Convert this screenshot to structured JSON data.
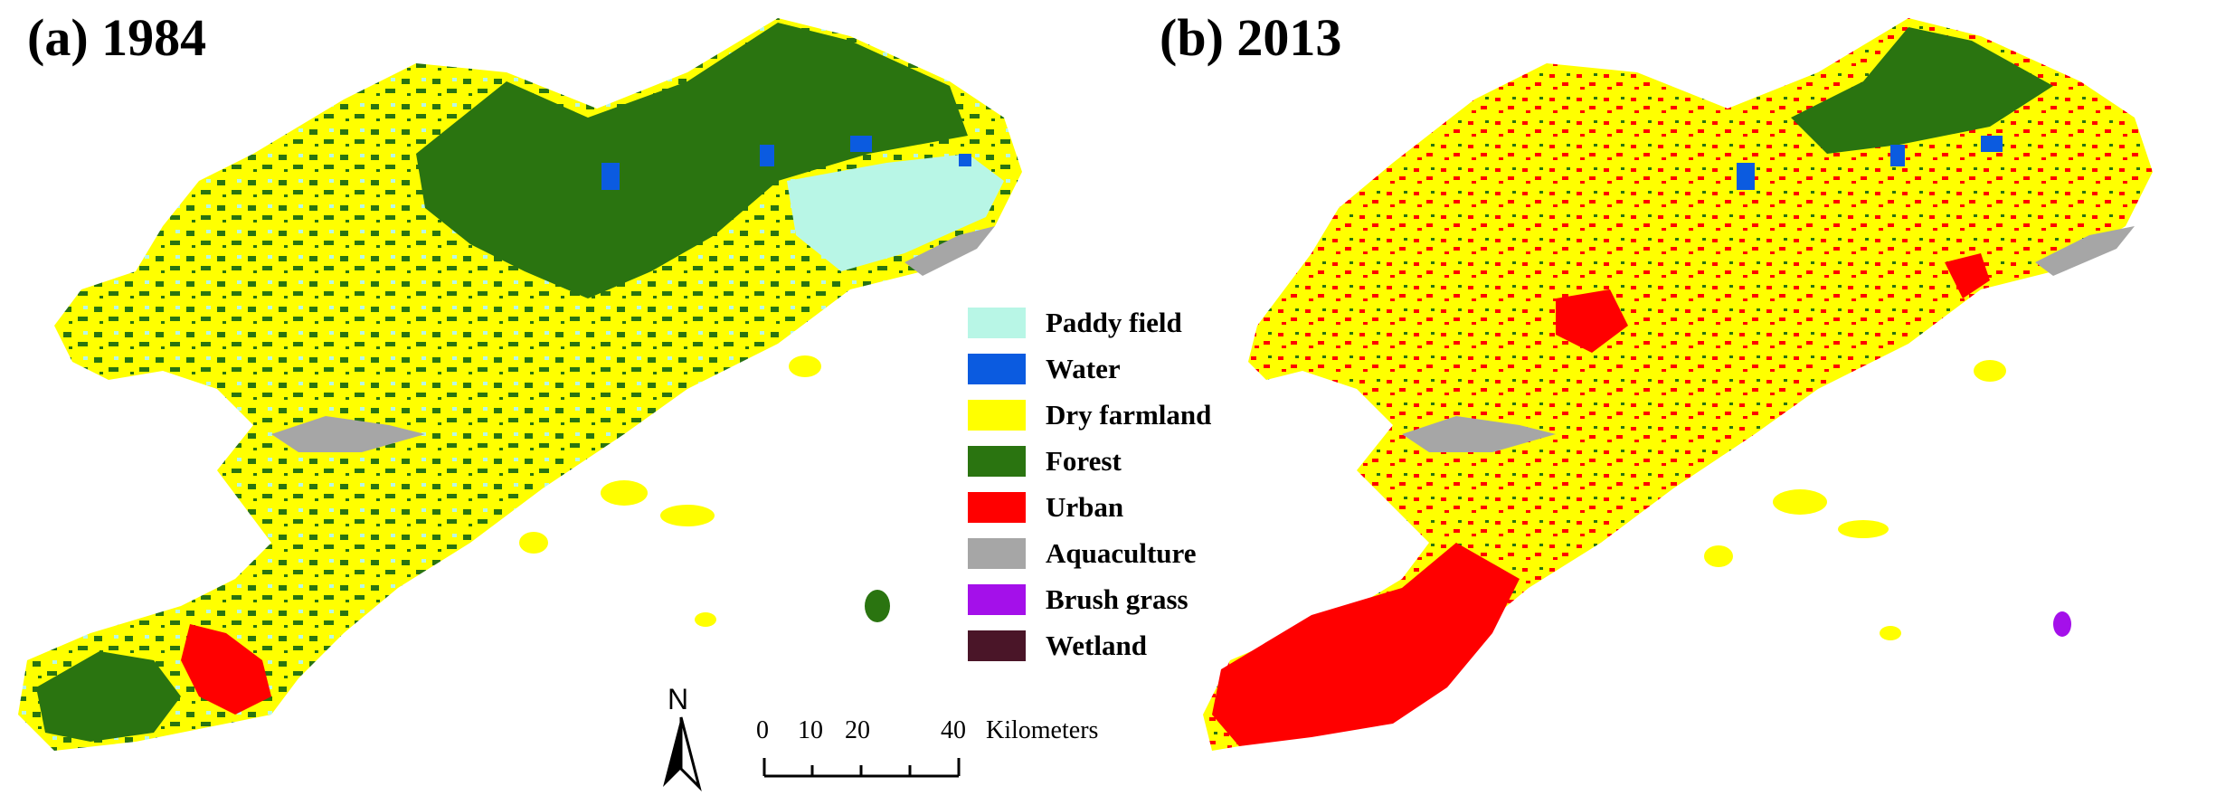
{
  "panels": [
    {
      "title": "(a) 1984"
    },
    {
      "title": "(b) 2013"
    }
  ],
  "legend": [
    {
      "label": "Paddy field",
      "color": "#b8f6e6"
    },
    {
      "label": "Water",
      "color": "#0b5be0"
    },
    {
      "label": "Dry farmland",
      "color": "#ffff00"
    },
    {
      "label": "Forest",
      "color": "#2a7410"
    },
    {
      "label": "Urban",
      "color": "#ff0000"
    },
    {
      "label": "Aquaculture",
      "color": "#a6a6a6"
    },
    {
      "label": "Brush grass",
      "color": "#a410ea"
    },
    {
      "label": "Wetland",
      "color": "#4a1528"
    }
  ],
  "north_arrow": {
    "label": "N"
  },
  "scale_bar": {
    "ticks": [
      "0",
      "10",
      "20",
      "40"
    ],
    "unit": "Kilometers"
  }
}
